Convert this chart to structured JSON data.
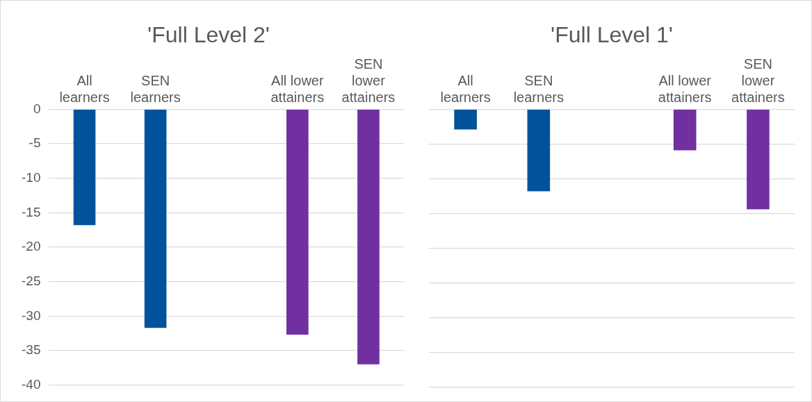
{
  "chart_data": [
    {
      "type": "bar",
      "title": "'Full Level 2'",
      "categories": [
        "All learners",
        "SEN learners",
        null,
        "All lower attainers",
        "SEN lower attainers"
      ],
      "values": [
        -16.8,
        -31.7,
        null,
        -32.7,
        -37.0
      ],
      "colors": [
        "#00539b",
        "#00539b",
        "#00539b",
        "#7030a0",
        "#7030a0"
      ],
      "ylim": [
        -40,
        0
      ],
      "yticks": [
        -40,
        -35,
        -30,
        -25,
        -20,
        -15,
        -10,
        -5,
        0
      ],
      "grid": "y",
      "legend": false
    },
    {
      "type": "bar",
      "title": "'Full Level 1'",
      "categories": [
        "All learners",
        "SEN learners",
        null,
        "All lower attainers",
        "SEN lower attainers"
      ],
      "values": [
        -2.9,
        -11.8,
        null,
        -5.9,
        -14.4
      ],
      "colors": [
        "#00539b",
        "#00539b",
        "#00539b",
        "#7030a0",
        "#7030a0"
      ],
      "ylim": [
        -40,
        0
      ],
      "yticks": [
        -40,
        -35,
        -30,
        -25,
        -20,
        -15,
        -10,
        -5,
        0
      ],
      "grid": "y",
      "legend": false,
      "tick_labels": "x"
    }
  ]
}
